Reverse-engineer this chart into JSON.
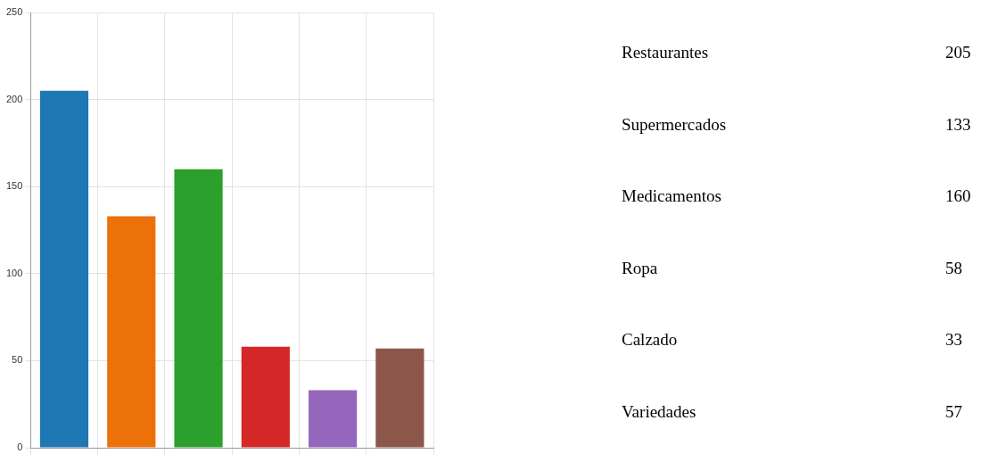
{
  "chart_data": [
    {
      "type": "bar",
      "categories": [
        null,
        null,
        null,
        null,
        null,
        null
      ],
      "values": [
        205,
        133,
        160,
        58,
        33,
        57
      ],
      "colors": [
        "#1f77b4",
        "#ec7109",
        "#2ca02c",
        "#d62728",
        "#9467bd",
        "#8c564b"
      ],
      "ylim": [
        0,
        250
      ],
      "yticks": [
        0,
        50,
        100,
        150,
        200,
        250
      ],
      "grid": true,
      "tick_labels": "y"
    },
    {
      "type": "other",
      "categories": [
        "Restaurantes",
        "Supermercados",
        "Medicamentos",
        "Ropa",
        "Calzado",
        "Variedades"
      ],
      "value_labels": [
        "205",
        "133",
        "160",
        "58",
        "33",
        "57"
      ]
    }
  ]
}
